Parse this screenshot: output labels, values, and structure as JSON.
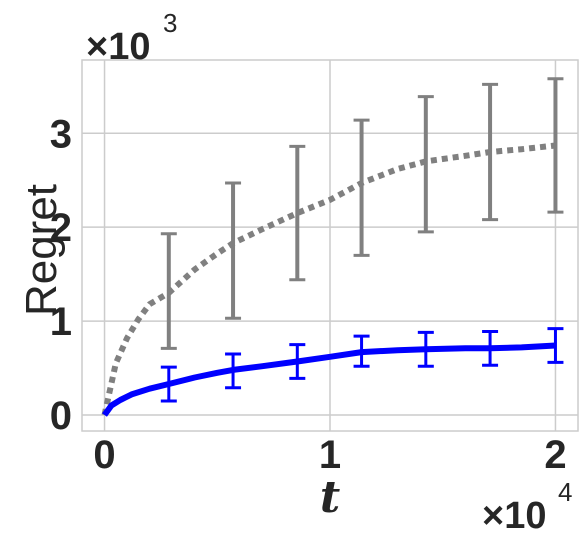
{
  "chart_data": {
    "type": "line",
    "title": "",
    "xlabel": "t",
    "ylabel": "Regret",
    "x_multiplier": {
      "base": "×10",
      "exp": "4"
    },
    "y_multiplier": {
      "base": "×10",
      "exp": "3"
    },
    "xlim": [
      -0.1,
      2.1
    ],
    "ylim": [
      -0.17,
      3.78
    ],
    "xticks": [
      0,
      1,
      2
    ],
    "xtick_labels": [
      "0",
      "1",
      "2"
    ],
    "yticks": [
      0,
      1,
      2,
      3
    ],
    "ytick_labels": [
      "0",
      "1",
      "2",
      "3"
    ],
    "grid": true,
    "colors": {
      "grid": "#cccccc",
      "spine": "#cccccc",
      "blue": "#0000ff",
      "gray": "#808080",
      "text": "#262626"
    },
    "series": [
      {
        "color": "#808080",
        "style": "dotted",
        "x": [
          0,
          0.05,
          0.1,
          0.15,
          0.2,
          0.285,
          0.4,
          0.5,
          0.57,
          0.7,
          0.855,
          1.0,
          1.14,
          1.3,
          1.425,
          1.6,
          1.71,
          1.85,
          2.0
        ],
        "y": [
          0,
          0.55,
          0.82,
          1.02,
          1.18,
          1.3,
          1.55,
          1.72,
          1.83,
          1.98,
          2.15,
          2.29,
          2.47,
          2.62,
          2.7,
          2.76,
          2.8,
          2.83,
          2.87
        ],
        "errorbars": {
          "x": [
            0.285,
            0.57,
            0.855,
            1.14,
            1.425,
            1.71,
            2.0
          ],
          "y": [
            1.32,
            1.75,
            2.15,
            2.42,
            2.67,
            2.8,
            2.87
          ],
          "err": [
            0.61,
            0.72,
            0.71,
            0.72,
            0.72,
            0.72,
            0.71
          ]
        }
      },
      {
        "color": "#0000ff",
        "style": "solid",
        "x": [
          0,
          0.03,
          0.07,
          0.12,
          0.2,
          0.285,
          0.4,
          0.5,
          0.57,
          0.7,
          0.855,
          1.0,
          1.14,
          1.3,
          1.425,
          1.6,
          1.71,
          1.85,
          2.0
        ],
        "y": [
          0,
          0.1,
          0.16,
          0.22,
          0.28,
          0.33,
          0.4,
          0.45,
          0.48,
          0.52,
          0.57,
          0.62,
          0.67,
          0.69,
          0.7,
          0.71,
          0.71,
          0.72,
          0.74
        ],
        "errorbars": {
          "x": [
            0.285,
            0.57,
            0.855,
            1.14,
            1.425,
            1.71,
            2.0
          ],
          "y": [
            0.33,
            0.47,
            0.57,
            0.68,
            0.7,
            0.71,
            0.74
          ],
          "err": [
            0.18,
            0.18,
            0.18,
            0.16,
            0.18,
            0.18,
            0.18
          ]
        }
      }
    ]
  }
}
